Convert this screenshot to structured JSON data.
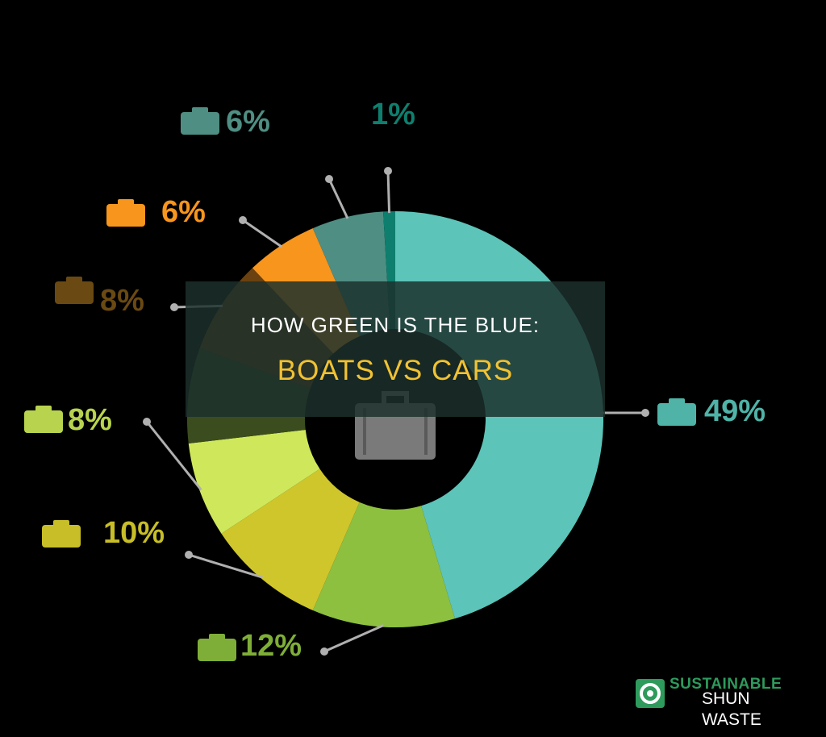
{
  "colors": {
    "background": "#000000",
    "title_band": "#1c302c",
    "title_text": "#ffffff",
    "title_highlight": "#f1c232",
    "leader_line": "#b0b0b0"
  },
  "title": {
    "line1": "HOW GREEN IS THE BLUE:",
    "line2": "BOATS VS CARS"
  },
  "brand": {
    "top_text": "SUSTAINABLE",
    "name": "SHUN WASTE",
    "icon": "recycle-ring-icon"
  },
  "center_icon": "suitcase-icon",
  "chart_data": {
    "type": "pie",
    "variant": "donut",
    "legend": "none",
    "slices": [
      {
        "label": "49%",
        "value": 49,
        "color": "#5cc4b8",
        "label_color": "#4fb3a7",
        "icon": "airplane-icon"
      },
      {
        "label": "12%",
        "value": 12,
        "color": "#8dc03f",
        "label_color": "#7fae38",
        "icon": "tshirt-icon"
      },
      {
        "label": "10%",
        "value": 10,
        "color": "#cfc62c",
        "label_color": "#c7be28",
        "icon": "food-drink-icon"
      },
      {
        "label": "8%",
        "value": 8,
        "color": "#cfe85b",
        "label_color": "#b8d44e",
        "icon": "wheat-icon"
      },
      {
        "label": "8%",
        "value": 8,
        "color": "#3b4d1e",
        "label_color": "#364a1c",
        "icon": "leaf-icon"
      },
      {
        "label": "8%",
        "value": 8,
        "color": "#6a4110",
        "label_color": "#6a4a12",
        "icon": "shopping-bag-icon"
      },
      {
        "label": "6%",
        "value": 6,
        "color": "#f7951d",
        "label_color": "#f7951d",
        "icon": "bed-icon"
      },
      {
        "label": "6%",
        "value": 6,
        "color": "#4f8e83",
        "label_color": "#4f8e83",
        "icon": "entertainment-icon"
      },
      {
        "label": "1%",
        "value": 1,
        "color": "#0e7f6e",
        "label_color": "#0e7f6e",
        "icon": ""
      }
    ]
  }
}
